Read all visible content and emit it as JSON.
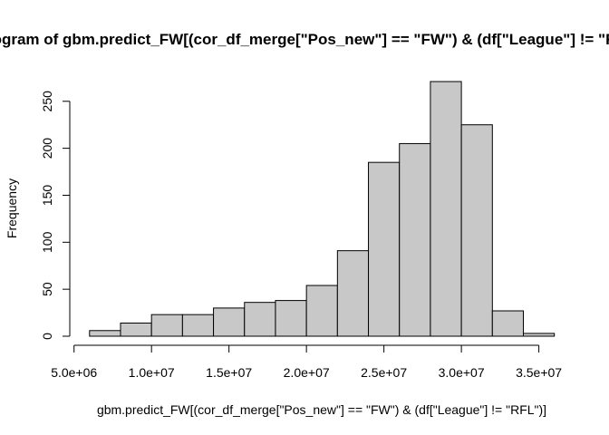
{
  "chart_data": {
    "type": "bar",
    "title": "Histogram of gbm.predict_FW[(cor_df_merge[\"Pos_new\"] == \"FW\") & (df[\"League\"] != \"RFL\")]",
    "xlabel": "gbm.predict_FW[(cor_df_merge[\"Pos_new\"] == \"FW\") & (df[\"League\"] != \"RFL\")]",
    "ylabel": "Frequency",
    "bin_edges": [
      6000000,
      8000000,
      10000000,
      12000000,
      14000000,
      16000000,
      18000000,
      20000000,
      22000000,
      24000000,
      26000000,
      28000000,
      30000000,
      32000000,
      34000000,
      36000000
    ],
    "values": [
      6,
      14,
      23,
      23,
      30,
      36,
      38,
      54,
      91,
      185,
      205,
      271,
      225,
      27,
      3
    ],
    "xlim": [
      5000000,
      36000000
    ],
    "ylim": [
      0,
      271
    ],
    "x_ticks": [
      5000000,
      10000000,
      15000000,
      20000000,
      25000000,
      30000000,
      35000000
    ],
    "x_tick_labels": [
      "5.0e+06",
      "1.0e+07",
      "1.5e+07",
      "2.0e+07",
      "2.5e+07",
      "3.0e+07",
      "3.5e+07"
    ],
    "y_ticks": [
      0,
      50,
      100,
      150,
      200,
      250
    ],
    "y_tick_labels": [
      "0",
      "50",
      "100",
      "150",
      "200",
      "250"
    ],
    "grid": false,
    "colors": {
      "bar_fill": "#c8c8c8",
      "bar_stroke": "#000000"
    }
  }
}
